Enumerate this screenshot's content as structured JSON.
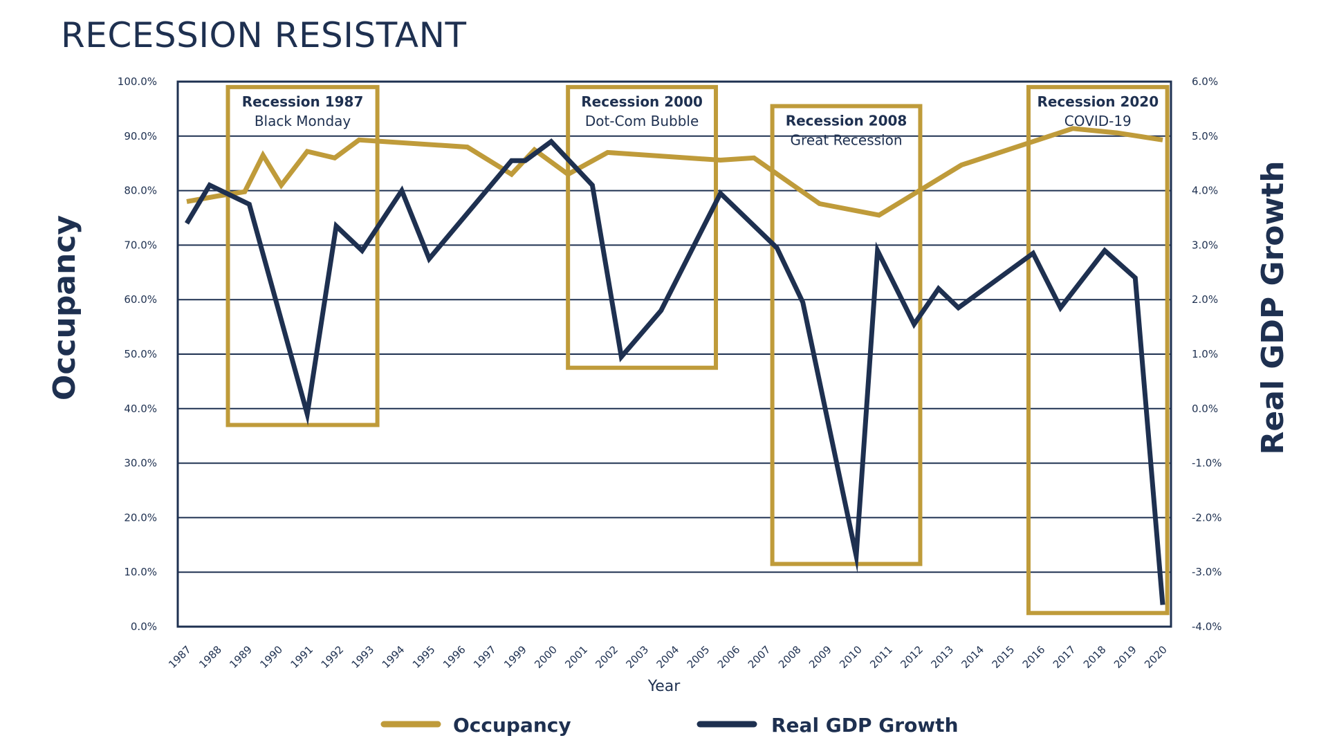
{
  "page": {
    "title": "RECESSION RESISTANT"
  },
  "colors": {
    "occupancy": "#bf9b3a",
    "gdp": "#1e3050",
    "grid": "#1e3050",
    "text": "#1e3050"
  },
  "chart_data": {
    "type": "line",
    "title": "RECESSION RESISTANT",
    "xlabel": "Year",
    "ylabel_left": "Occupancy",
    "ylabel_right": "Real GDP Growth",
    "ylim_left": [
      0,
      100
    ],
    "ylim_right": [
      -4,
      6
    ],
    "grid": true,
    "legend_position": "bottom-center",
    "left_ticks": [
      "100.0%",
      "90.0%",
      "80.0%",
      "70.0%",
      "60.0%",
      "50.0%",
      "40.0%",
      "30.0%",
      "20.0%",
      "10.0%",
      "0.0%"
    ],
    "right_ticks": [
      "6.0%",
      "5.0%",
      "4.0%",
      "3.0%",
      "2.0%",
      "1.0%",
      "0.0%",
      "-1.0%",
      "-2.0%",
      "-3.0%",
      "-4.0%"
    ],
    "categories": [
      "1987",
      "1988",
      "1989",
      "1990",
      "1991",
      "1992",
      "1993",
      "1994",
      "1995",
      "1996",
      "1997",
      "1999",
      "2000",
      "2001",
      "2002",
      "2003",
      "2004",
      "2005",
      "2006",
      "2007",
      "2008",
      "2009",
      "2010",
      "2011",
      "2012",
      "2013",
      "2014",
      "2015",
      "2016",
      "2017",
      "2018",
      "2019",
      "2020"
    ],
    "series": [
      {
        "name": "Occupancy",
        "axis": "left",
        "points": [
          {
            "x": 0,
            "y": 78.0
          },
          {
            "x": 1,
            "y": 79.0
          },
          {
            "x": 1.9,
            "y": 79.8
          },
          {
            "x": 2.5,
            "y": 86.5
          },
          {
            "x": 3.1,
            "y": 81.0
          },
          {
            "x": 3.95,
            "y": 87.2
          },
          {
            "x": 4.85,
            "y": 86.0
          },
          {
            "x": 5.65,
            "y": 89.3
          },
          {
            "x": 9.2,
            "y": 88.0
          },
          {
            "x": 10.65,
            "y": 83.0
          },
          {
            "x": 11.4,
            "y": 87.5
          },
          {
            "x": 12.5,
            "y": 83.0
          },
          {
            "x": 13.8,
            "y": 87.0
          },
          {
            "x": 17.5,
            "y": 85.6
          },
          {
            "x": 18.6,
            "y": 86.0
          },
          {
            "x": 20.75,
            "y": 77.6
          },
          {
            "x": 22.7,
            "y": 75.5
          },
          {
            "x": 25.4,
            "y": 84.7
          },
          {
            "x": 29.05,
            "y": 91.4
          },
          {
            "x": 30.5,
            "y": 90.6
          },
          {
            "x": 32.0,
            "y": 89.3
          }
        ]
      },
      {
        "name": "Real GDP Growth",
        "axis": "right",
        "points": [
          {
            "x": 0,
            "y": 3.4
          },
          {
            "x": 0.75,
            "y": 4.1
          },
          {
            "x": 2.05,
            "y": 3.75
          },
          {
            "x": 3.95,
            "y": -0.1
          },
          {
            "x": 4.9,
            "y": 3.35
          },
          {
            "x": 5.75,
            "y": 2.9
          },
          {
            "x": 7.05,
            "y": 4.0
          },
          {
            "x": 7.95,
            "y": 2.75
          },
          {
            "x": 10.65,
            "y": 4.55
          },
          {
            "x": 11.1,
            "y": 4.55
          },
          {
            "x": 11.95,
            "y": 4.9
          },
          {
            "x": 13.3,
            "y": 4.1
          },
          {
            "x": 14.25,
            "y": 0.95
          },
          {
            "x": 15.55,
            "y": 1.8
          },
          {
            "x": 17.5,
            "y": 3.95
          },
          {
            "x": 19.35,
            "y": 2.95
          },
          {
            "x": 20.2,
            "y": 1.95
          },
          {
            "x": 21.95,
            "y": -2.7
          },
          {
            "x": 22.65,
            "y": 2.9
          },
          {
            "x": 23.85,
            "y": 1.55
          },
          {
            "x": 24.65,
            "y": 2.2
          },
          {
            "x": 25.3,
            "y": 1.85
          },
          {
            "x": 27.75,
            "y": 2.85
          },
          {
            "x": 28.65,
            "y": 1.85
          },
          {
            "x": 30.1,
            "y": 2.9
          },
          {
            "x": 31.1,
            "y": 2.4
          },
          {
            "x": 32.0,
            "y": -3.6
          }
        ]
      }
    ],
    "annotations": [
      {
        "title": "Recession 1987",
        "subtitle": "Black Monday",
        "x_range": [
          1.35,
          6.25
        ],
        "y_left_range": [
          37,
          99
        ]
      },
      {
        "title": "Recession 2000",
        "subtitle": "Dot-Com Bubble",
        "x_range": [
          12.5,
          17.35
        ],
        "y_left_range": [
          47.5,
          99
        ]
      },
      {
        "title": "Recession 2008",
        "subtitle": "Great Recession",
        "x_range": [
          19.2,
          24.05
        ],
        "y_left_range": [
          11.5,
          95.5
        ]
      },
      {
        "title": "Recession 2020",
        "subtitle": "COVID-19",
        "x_range": [
          27.6,
          32.15
        ],
        "y_left_range": [
          2.5,
          99
        ]
      }
    ]
  },
  "legend": [
    {
      "label": "Occupancy",
      "series": "Occupancy"
    },
    {
      "label": "Real GDP Growth",
      "series": "Real GDP Growth"
    }
  ]
}
